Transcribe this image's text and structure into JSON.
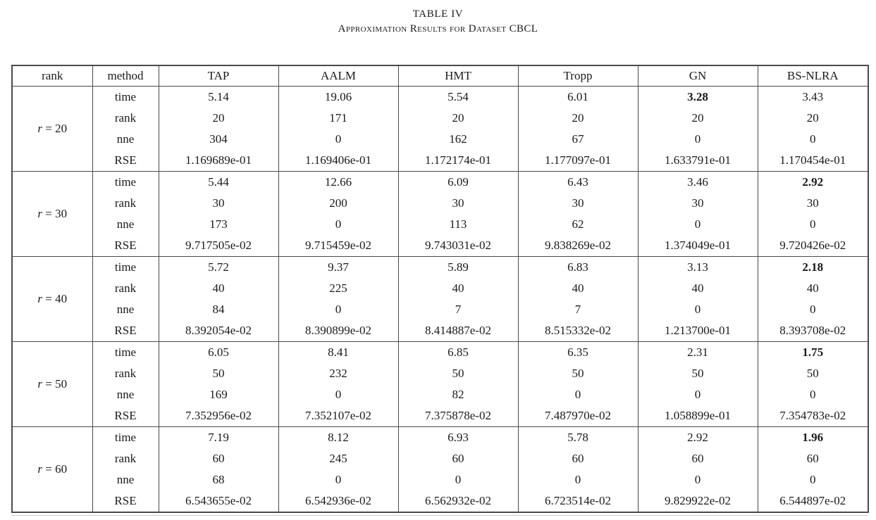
{
  "page": {
    "title": "TABLE IV",
    "subtitle": "Approximation Results for Dataset CBCL"
  },
  "colors": {
    "text": "#1a1a1a",
    "border": "#4a4a4a",
    "background": "#ffffff"
  },
  "table": {
    "columns": [
      "rank",
      "method",
      "TAP",
      "AALM",
      "HMT",
      "Tropp",
      "GN",
      "BS-NLRA"
    ],
    "metric_labels": [
      "time",
      "rank",
      "nne",
      "RSE"
    ],
    "groups": [
      {
        "rank_var": "r",
        "rank_value": "20",
        "rows": [
          {
            "metric": "time",
            "values": [
              "5.14",
              "19.06",
              "5.54",
              "6.01",
              "3.28",
              "3.43"
            ],
            "bold_index": 4
          },
          {
            "metric": "rank",
            "values": [
              "20",
              "171",
              "20",
              "20",
              "20",
              "20"
            ],
            "bold_index": null
          },
          {
            "metric": "nne",
            "values": [
              "304",
              "0",
              "162",
              "67",
              "0",
              "0"
            ],
            "bold_index": null
          },
          {
            "metric": "RSE",
            "values": [
              "1.169689e-01",
              "1.169406e-01",
              "1.172174e-01",
              "1.177097e-01",
              "1.633791e-01",
              "1.170454e-01"
            ],
            "bold_index": null
          }
        ]
      },
      {
        "rank_var": "r",
        "rank_value": "30",
        "rows": [
          {
            "metric": "time",
            "values": [
              "5.44",
              "12.66",
              "6.09",
              "6.43",
              "3.46",
              "2.92"
            ],
            "bold_index": 5
          },
          {
            "metric": "rank",
            "values": [
              "30",
              "200",
              "30",
              "30",
              "30",
              "30"
            ],
            "bold_index": null
          },
          {
            "metric": "nne",
            "values": [
              "173",
              "0",
              "113",
              "62",
              "0",
              "0"
            ],
            "bold_index": null
          },
          {
            "metric": "RSE",
            "values": [
              "9.717505e-02",
              "9.715459e-02",
              "9.743031e-02",
              "9.838269e-02",
              "1.374049e-01",
              "9.720426e-02"
            ],
            "bold_index": null
          }
        ]
      },
      {
        "rank_var": "r",
        "rank_value": "40",
        "rows": [
          {
            "metric": "time",
            "values": [
              "5.72",
              "9.37",
              "5.89",
              "6.83",
              "3.13",
              "2.18"
            ],
            "bold_index": 5
          },
          {
            "metric": "rank",
            "values": [
              "40",
              "225",
              "40",
              "40",
              "40",
              "40"
            ],
            "bold_index": null
          },
          {
            "metric": "nne",
            "values": [
              "84",
              "0",
              "7",
              "7",
              "0",
              "0"
            ],
            "bold_index": null
          },
          {
            "metric": "RSE",
            "values": [
              "8.392054e-02",
              "8.390899e-02",
              "8.414887e-02",
              "8.515332e-02",
              "1.213700e-01",
              "8.393708e-02"
            ],
            "bold_index": null
          }
        ]
      },
      {
        "rank_var": "r",
        "rank_value": "50",
        "rows": [
          {
            "metric": "time",
            "values": [
              "6.05",
              "8.41",
              "6.85",
              "6.35",
              "2.31",
              "1.75"
            ],
            "bold_index": 5
          },
          {
            "metric": "rank",
            "values": [
              "50",
              "232",
              "50",
              "50",
              "50",
              "50"
            ],
            "bold_index": null
          },
          {
            "metric": "nne",
            "values": [
              "169",
              "0",
              "82",
              "0",
              "0",
              "0"
            ],
            "bold_index": null
          },
          {
            "metric": "RSE",
            "values": [
              "7.352956e-02",
              "7.352107e-02",
              "7.375878e-02",
              "7.487970e-02",
              "1.058899e-01",
              "7.354783e-02"
            ],
            "bold_index": null
          }
        ]
      },
      {
        "rank_var": "r",
        "rank_value": "60",
        "rows": [
          {
            "metric": "time",
            "values": [
              "7.19",
              "8.12",
              "6.93",
              "5.78",
              "2.92",
              "1.96"
            ],
            "bold_index": 5
          },
          {
            "metric": "rank",
            "values": [
              "60",
              "245",
              "60",
              "60",
              "60",
              "60"
            ],
            "bold_index": null
          },
          {
            "metric": "nne",
            "values": [
              "68",
              "0",
              "0",
              "0",
              "0",
              "0"
            ],
            "bold_index": null
          },
          {
            "metric": "RSE",
            "values": [
              "6.543655e-02",
              "6.542936e-02",
              "6.562932e-02",
              "6.723514e-02",
              "9.829922e-02",
              "6.544897e-02"
            ],
            "bold_index": null
          }
        ]
      }
    ]
  }
}
